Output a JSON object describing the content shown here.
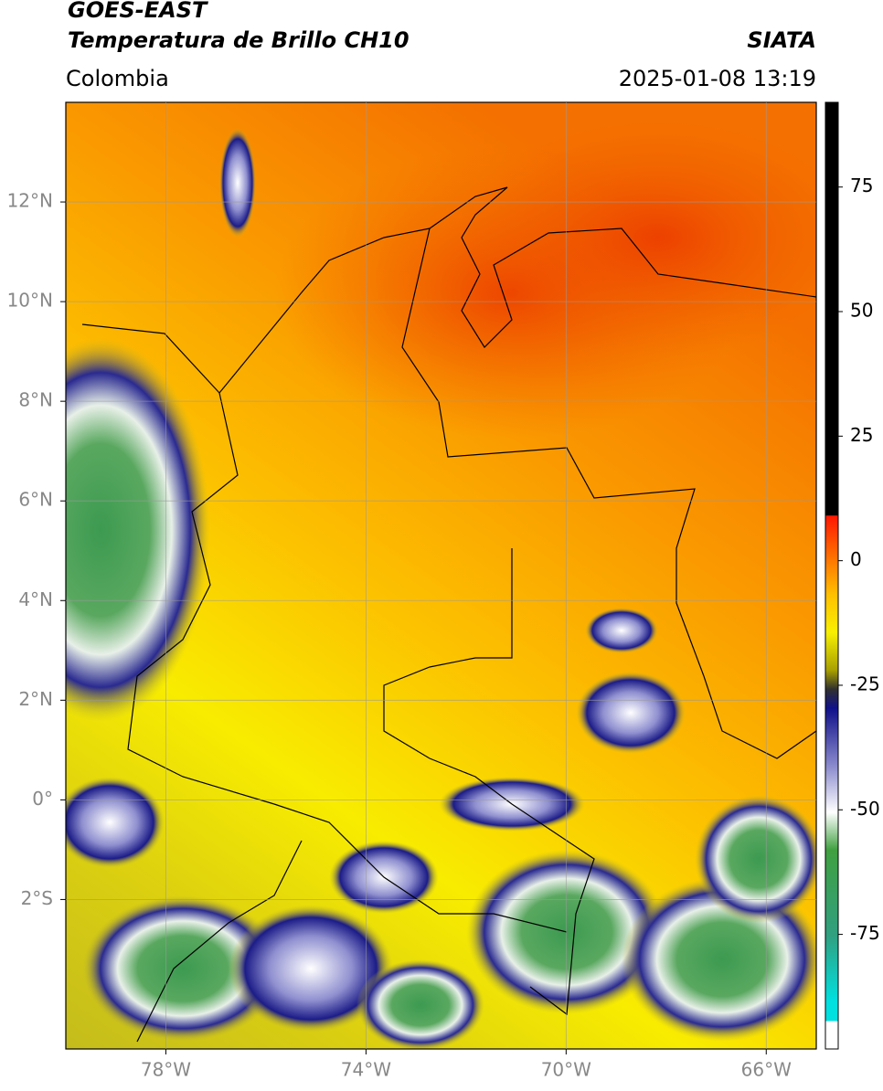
{
  "header": {
    "satellite": "GOES-EAST",
    "product": "Temperatura de Brillo CH10",
    "agency": "SIATA",
    "region": "Colombia",
    "datetime": "2025-01-08 13:19"
  },
  "map": {
    "lat_range": [
      -5,
      14
    ],
    "lon_range": [
      -80,
      -65
    ],
    "lat_ticks": [
      {
        "value": 12,
        "label": "12°N"
      },
      {
        "value": 10,
        "label": "10°N"
      },
      {
        "value": 8,
        "label": "8°N"
      },
      {
        "value": 6,
        "label": "6°N"
      },
      {
        "value": 4,
        "label": "4°N"
      },
      {
        "value": 2,
        "label": "2°N"
      },
      {
        "value": 0,
        "label": "0°"
      },
      {
        "value": -2,
        "label": "2°S"
      }
    ],
    "lon_ticks": [
      {
        "value": -78,
        "label": "78°W"
      },
      {
        "value": -74,
        "label": "74°W"
      },
      {
        "value": -70,
        "label": "70°W"
      },
      {
        "value": -66,
        "label": "66°W"
      }
    ]
  },
  "colorbar": {
    "range": [
      -98,
      92
    ],
    "ticks": [
      75,
      50,
      25,
      0,
      -25,
      -50,
      -75
    ]
  }
}
